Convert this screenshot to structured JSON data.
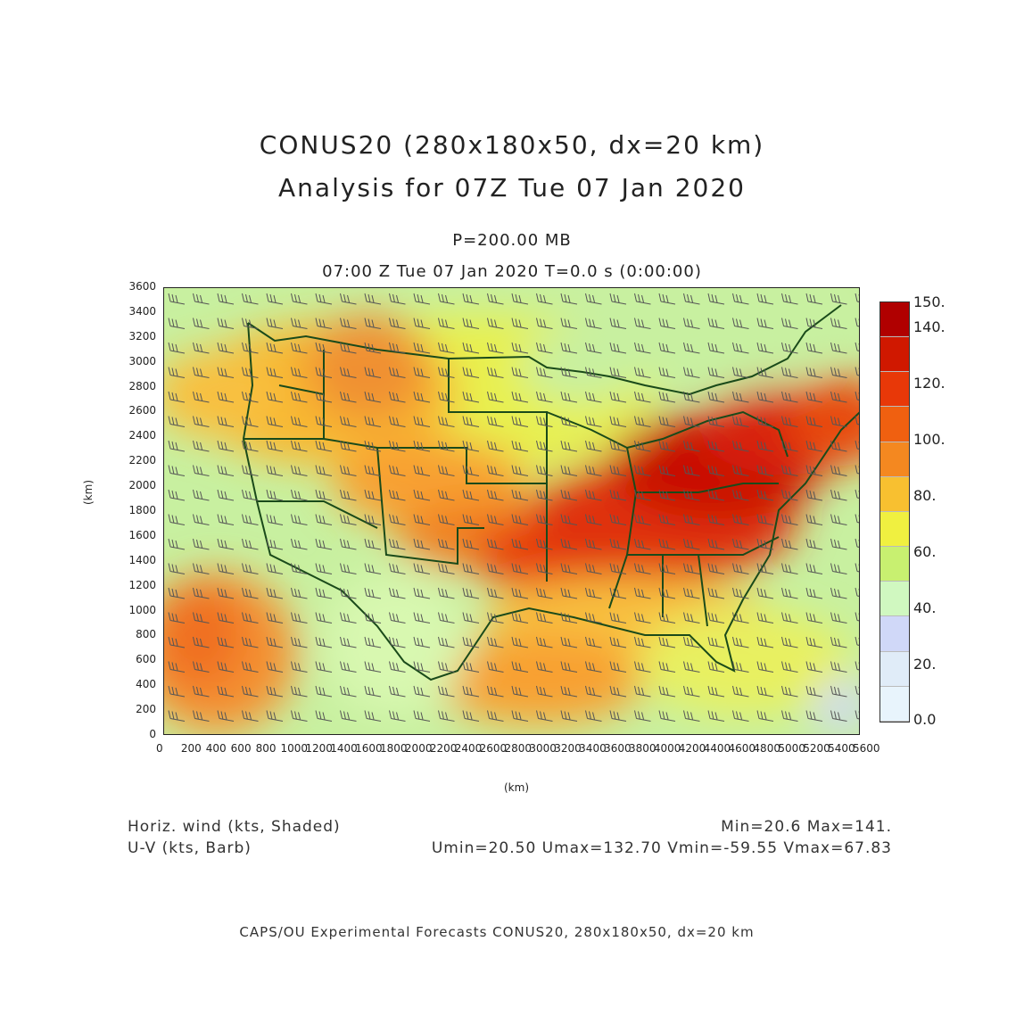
{
  "title": {
    "line1": "CONUS20 (280x180x50, dx=20 km)",
    "line2": "Analysis for 07Z Tue 07 Jan 2020"
  },
  "subtitle": {
    "level": "P=200.00 MB",
    "time": "07:00 Z Tue 07 Jan 2020    T=0.0 s (0:00:00)"
  },
  "axes": {
    "xlabel": "(km)",
    "ylabel": "(km)",
    "xticks": [
      "0",
      "200",
      "400",
      "600",
      "800",
      "1000",
      "1200",
      "1400",
      "1600",
      "1800",
      "2000",
      "2200",
      "2400",
      "2600",
      "2800",
      "3000",
      "3200",
      "3400",
      "3600",
      "3800",
      "4000",
      "4200",
      "4400",
      "4600",
      "4800",
      "5000",
      "5200",
      "5400",
      "5600"
    ],
    "yticks": [
      "0",
      "200",
      "400",
      "600",
      "800",
      "1000",
      "1200",
      "1400",
      "1600",
      "1800",
      "2000",
      "2200",
      "2400",
      "2600",
      "2800",
      "3000",
      "3200",
      "3400",
      "3600"
    ]
  },
  "colorbar": {
    "labels": [
      "150.",
      "140.",
      "120.",
      "100.",
      "80.",
      "60.",
      "40.",
      "20.",
      "0.0"
    ],
    "colors": [
      "#b00000",
      "#d01800",
      "#e83808",
      "#f06010",
      "#f48820",
      "#f8c030",
      "#f0f040",
      "#c8f070",
      "#d0f8c0",
      "#d0d8f8",
      "#e0ecf8",
      "#e8f4fc"
    ]
  },
  "legend": {
    "left_line1": "Horiz. wind (kts, Shaded)",
    "left_line2": "U-V (kts, Barb)",
    "right_line1": "Min=20.6 Max=141.",
    "right_line2": "Umin=20.50 Umax=132.70 Vmin=-59.55 Vmax=67.83"
  },
  "footer": "CAPS/OU Experimental Forecasts  CONUS20, 280x180x50, dx=20 km"
}
